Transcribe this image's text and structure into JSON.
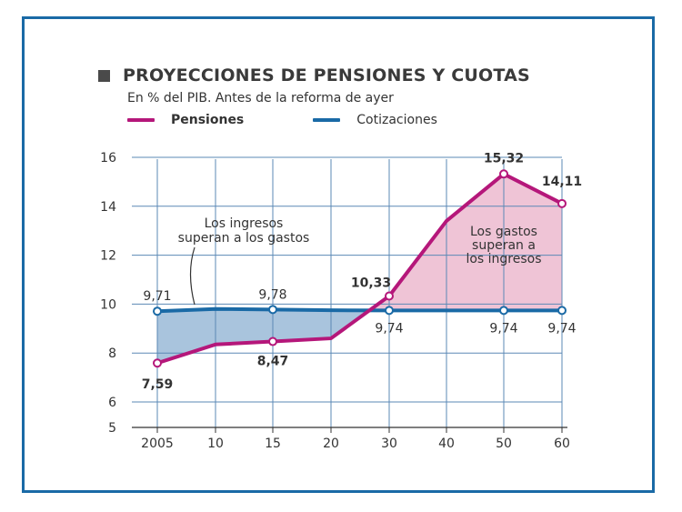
{
  "chart_data": {
    "type": "line",
    "title": "PROYECCIONES DE PENSIONES Y CUOTAS",
    "subtitle": "En % del PIB. Antes de la reforma de ayer",
    "categories": [
      "2005",
      "10",
      "15",
      "20",
      "30",
      "40",
      "50",
      "60"
    ],
    "yticks": [
      5,
      6,
      8,
      10,
      12,
      14,
      16
    ],
    "ylim": [
      5,
      16
    ],
    "grid": true,
    "legend_position": "top-left",
    "series": [
      {
        "name": "Pensiones",
        "color": "#b5177a",
        "values": [
          7.59,
          8.35,
          8.47,
          8.6,
          10.33,
          13.4,
          15.32,
          14.11
        ],
        "data_labels": [
          "7,59",
          "",
          "8,47",
          "",
          "10,33",
          "",
          "15,32",
          "14,11"
        ],
        "markers": [
          0,
          2,
          4,
          6,
          7
        ]
      },
      {
        "name": "Cotizaciones",
        "color": "#1a6aa6",
        "values": [
          9.71,
          9.8,
          9.78,
          9.75,
          9.74,
          9.74,
          9.74,
          9.74
        ],
        "data_labels": [
          "9,71",
          "",
          "9,78",
          "",
          "9,74",
          "",
          "9,74",
          "9,74"
        ],
        "markers": [
          0,
          2,
          4,
          6,
          7
        ]
      }
    ],
    "annotations": [
      {
        "text": [
          "Los ingresos",
          "superan a los gastos"
        ]
      },
      {
        "text": [
          "Los gastos",
          "superan a",
          "los ingresos"
        ]
      }
    ],
    "fill_colors": {
      "ingresos": "#a9c4dd",
      "gastos": "#efc4d6"
    }
  }
}
